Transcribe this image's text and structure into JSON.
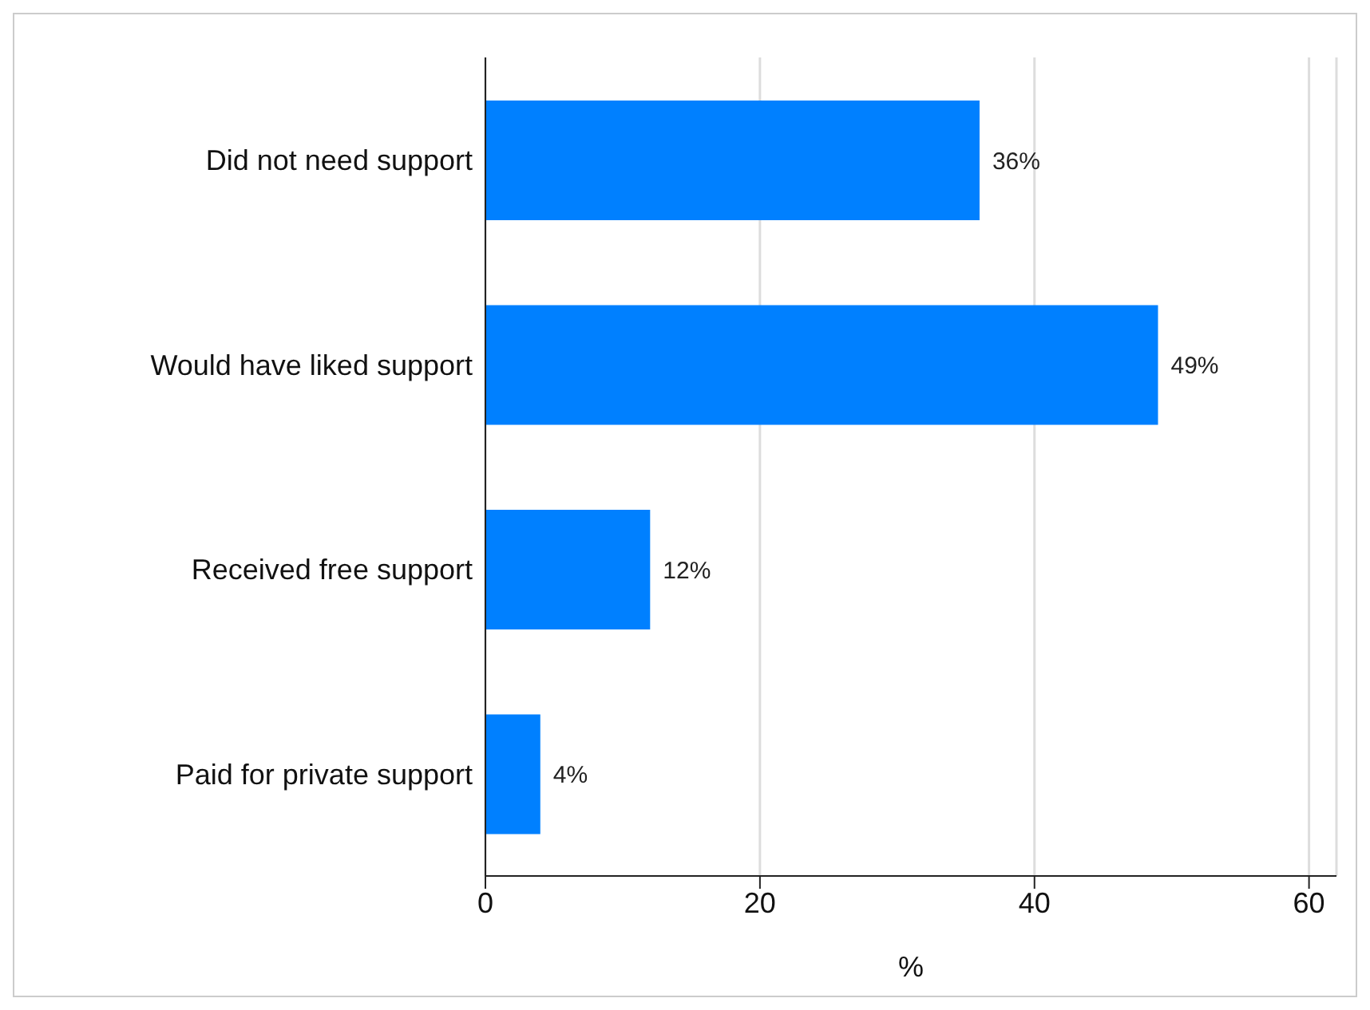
{
  "chart_data": {
    "type": "bar",
    "orientation": "horizontal",
    "categories": [
      "Did not need support",
      "Would have liked support",
      "Received free support",
      "Paid for private support"
    ],
    "values": [
      36,
      49,
      12,
      4
    ],
    "value_labels": [
      "36%",
      "49%",
      "12%",
      "4%"
    ],
    "color": "#0080ff",
    "xlim": [
      0,
      62
    ],
    "xticks": [
      0,
      20,
      40,
      60
    ],
    "xlabel": "%",
    "grid": "x",
    "legend": false
  }
}
